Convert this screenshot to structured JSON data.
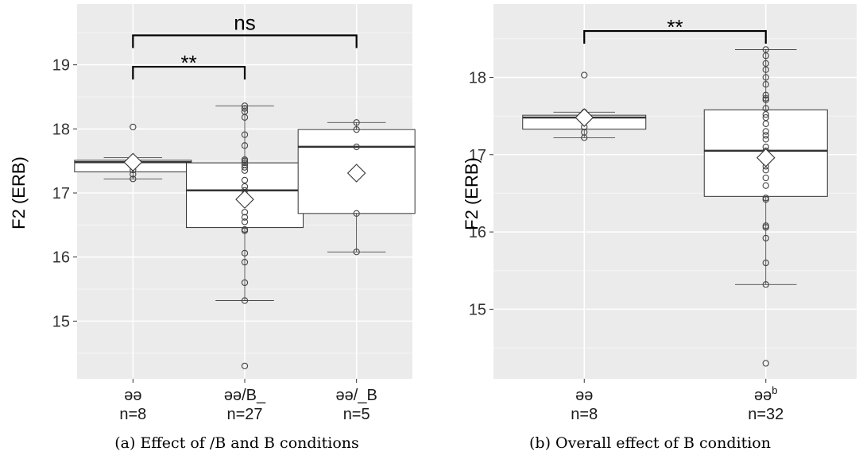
{
  "colors": {
    "panel_bg": "#ebebeb",
    "grid_major": "#ffffff",
    "grid_minor": "#f5f5f5",
    "box_fill": "#ffffff",
    "box_stroke": "#333333",
    "point_stroke": "#444444",
    "bracket": "#000000"
  },
  "chart_data": [
    {
      "type": "box",
      "caption": "(a) Effect of /B   and   B conditions",
      "ylabel": "F2 (ERB)",
      "ylim": [
        14.1,
        19.95
      ],
      "yticks": [
        15,
        16,
        17,
        18,
        19
      ],
      "grid": true,
      "categories": [
        {
          "label": "əə",
          "n_label": "n=8",
          "q1": 17.33,
          "median": 17.48,
          "q3": 17.51,
          "whisker_low": 17.22,
          "whisker_high": 17.55,
          "mean": 17.48,
          "points": [
            18.03,
            17.55,
            17.51,
            17.5,
            17.48,
            17.36,
            17.29,
            17.22
          ]
        },
        {
          "label": "əə/B_",
          "n_label": "n=27",
          "q1": 16.46,
          "median": 17.04,
          "q3": 17.47,
          "whisker_low": 15.32,
          "whisker_high": 18.36,
          "mean": 16.9,
          "points": [
            18.36,
            18.32,
            18.27,
            18.18,
            17.91,
            17.74,
            17.52,
            17.5,
            17.47,
            17.44,
            17.4,
            17.35,
            17.2,
            17.1,
            17.04,
            16.98,
            16.85,
            16.7,
            16.55,
            16.43,
            16.41,
            16.06,
            15.92,
            15.6,
            15.32,
            14.3,
            16.62
          ]
        },
        {
          "label": "əə/_B",
          "n_label": "n=5",
          "q1": 16.68,
          "median": 17.72,
          "q3": 17.99,
          "whisker_low": 16.08,
          "whisker_high": 18.1,
          "mean": 17.31,
          "points": [
            18.1,
            17.99,
            17.72,
            16.68,
            16.08
          ]
        }
      ],
      "comparisons": [
        {
          "from": 0,
          "to": 2,
          "label": "ns",
          "y": 19.46
        },
        {
          "from": 0,
          "to": 1,
          "label": "**",
          "y": 18.97
        }
      ]
    },
    {
      "type": "box",
      "caption": "(b) Overall effect of B condition",
      "ylabel": "F2 (ERB)",
      "ylim": [
        14.1,
        18.95
      ],
      "yticks": [
        15,
        16,
        17,
        18
      ],
      "grid": true,
      "categories": [
        {
          "label": "əə",
          "n_label": "n=8",
          "q1": 17.33,
          "median": 17.48,
          "q3": 17.51,
          "whisker_low": 17.22,
          "whisker_high": 17.55,
          "mean": 17.48,
          "points": [
            18.03,
            17.55,
            17.51,
            17.5,
            17.48,
            17.36,
            17.29,
            17.22
          ]
        },
        {
          "label": "əə",
          "label_sup": "b",
          "n_label": "n=32",
          "q1": 16.46,
          "median": 17.05,
          "q3": 17.58,
          "whisker_low": 15.32,
          "whisker_high": 18.36,
          "mean": 16.96,
          "points": [
            18.36,
            18.28,
            18.18,
            18.1,
            18.0,
            17.91,
            17.77,
            17.73,
            17.71,
            17.6,
            17.52,
            17.48,
            17.4,
            17.3,
            17.2,
            17.05,
            16.98,
            16.9,
            16.8,
            16.7,
            16.6,
            16.44,
            16.42,
            16.08,
            16.06,
            15.92,
            15.6,
            15.32,
            14.3,
            17.1,
            16.85,
            17.25
          ]
        }
      ],
      "comparisons": [
        {
          "from": 0,
          "to": 1,
          "label": "**",
          "y": 18.6
        }
      ]
    }
  ]
}
